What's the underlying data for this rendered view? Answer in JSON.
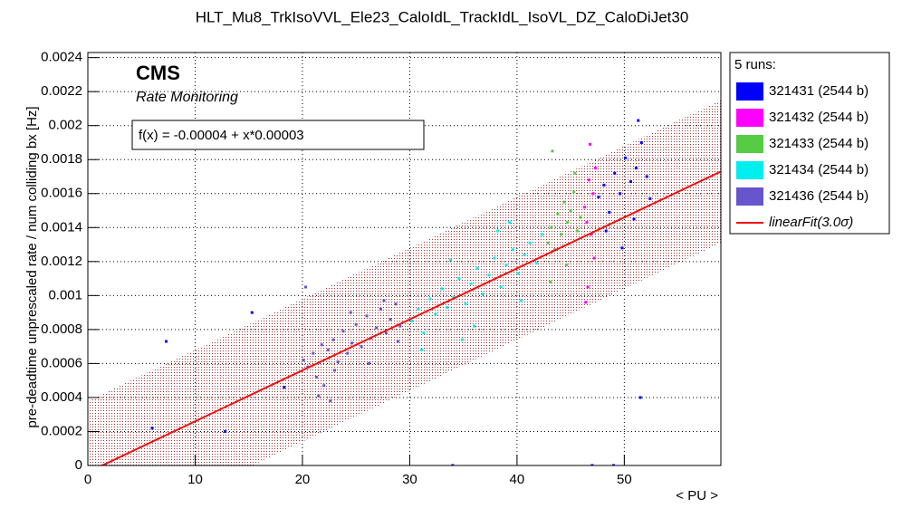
{
  "chart_data": {
    "type": "scatter",
    "title": "HLT_Mu8_TrkIsoVVL_Ele23_CaloIdL_TrackIdL_IsoVL_DZ_CaloDiJet30",
    "x_label": "< PU >",
    "y_label": "pre-deadtime unprescaled rate / num colliding bx [Hz]",
    "brand": "CMS",
    "subtitle": "Rate Monitoring",
    "legend_title": "5 runs:",
    "legend": "right",
    "grid": true,
    "xlim": [
      0,
      59
    ],
    "ylim": [
      0,
      0.00243
    ],
    "xticks": [
      0,
      10,
      20,
      30,
      40,
      50
    ],
    "yticks": [
      0,
      0.0002,
      0.0004,
      0.0006,
      0.0008,
      0.001,
      0.0012,
      0.0014,
      0.0016,
      0.0018,
      0.002,
      0.0022,
      0.0024
    ],
    "fit": {
      "name": "linearFit(3.0σ)",
      "formula": "f(x) = -0.00004 + x*0.00003",
      "intercept": -4e-05,
      "slope": 3e-05,
      "band": 0.00042,
      "color": "#ee1111",
      "band_color": "#993333"
    },
    "series": [
      {
        "name": "321431 (2544 b)",
        "color": "#0000ff",
        "x": [
          47.6,
          48.1,
          48.6,
          49.1,
          49.6,
          50.1,
          50.6,
          51.1,
          51.6,
          52.1,
          48.3,
          49.8,
          51.3,
          52.4,
          50.9,
          51.5,
          34,
          47,
          49,
          6,
          7.3,
          15.3,
          12.8,
          18.3
        ],
        "y": [
          0.00158,
          0.00165,
          0.00149,
          0.00172,
          0.0016,
          0.00181,
          0.00167,
          0.00175,
          0.0019,
          0.0017,
          0.00138,
          0.00128,
          0.00203,
          0.00157,
          0.00145,
          0.0004,
          0,
          0,
          0,
          0.00022,
          0.00073,
          0.0009,
          0.0002,
          0.00046
        ]
      },
      {
        "name": "321432 (2544 b)",
        "color": "#ff00ff",
        "x": [
          46.3,
          46.5,
          46.7,
          46.9,
          47.1,
          47.3,
          46.4,
          46.8,
          47.2,
          46.6
        ],
        "y": [
          0.00152,
          0.00143,
          0.00168,
          0.00136,
          0.0016,
          0.00175,
          0.00096,
          0.00189,
          0.00122,
          0.00105
        ]
      },
      {
        "name": "321433 (2544 b)",
        "color": "#55cc44",
        "x": [
          42.9,
          43.2,
          43.5,
          43.8,
          44.1,
          44.4,
          44.7,
          45,
          45.3,
          45.6,
          45.9,
          43.3,
          44.6,
          45.4,
          43.1
        ],
        "y": [
          0.00131,
          0.0014,
          0.00127,
          0.00148,
          0.00136,
          0.00155,
          0.00143,
          0.0015,
          0.00161,
          0.00138,
          0.00146,
          0.00185,
          0.00118,
          0.00172,
          0.00108
        ]
      },
      {
        "name": "321434 (2544 b)",
        "color": "#00eeee",
        "x": [
          30.2,
          30.8,
          31.3,
          31.9,
          32.4,
          33,
          33.5,
          34.1,
          34.6,
          35.2,
          35.7,
          36.3,
          36.8,
          37.4,
          37.9,
          38.5,
          39,
          39.6,
          40.1,
          40.7,
          41.2,
          41.8,
          42.3,
          31.1,
          33.8,
          36,
          38.2,
          40.4,
          34.9,
          39.3
        ],
        "y": [
          0.00085,
          0.00092,
          0.00078,
          0.00098,
          0.00089,
          0.00104,
          0.00093,
          0.00099,
          0.0011,
          0.00095,
          0.00107,
          0.00116,
          0.00101,
          0.00112,
          0.00122,
          0.00105,
          0.00118,
          0.00127,
          0.00113,
          0.00124,
          0.00131,
          0.00119,
          0.00136,
          0.00068,
          0.00121,
          0.00082,
          0.00138,
          0.00097,
          0.00074,
          0.00143
        ]
      },
      {
        "name": "321436 (2544 b)",
        "color": "#6655cc",
        "x": [
          20.1,
          20.5,
          21,
          21.3,
          21.8,
          22,
          22.4,
          22.9,
          23.3,
          23.8,
          24.2,
          24.6,
          25,
          25.5,
          26,
          26.4,
          26.9,
          27.3,
          27.8,
          28.2,
          28.7,
          29.1,
          21.5,
          23,
          24.5,
          26.2,
          27.6,
          28.9,
          20.3,
          22.6
        ],
        "y": [
          0.00062,
          0.00058,
          0.00066,
          0.00052,
          0.00071,
          0.00047,
          0.00068,
          0.00074,
          0.00061,
          0.00079,
          0.00066,
          0.00072,
          0.00083,
          0.0007,
          0.00088,
          0.00075,
          0.00081,
          0.00092,
          0.00078,
          0.00086,
          0.00095,
          0.00082,
          0.00041,
          0.00056,
          0.0009,
          0.0006,
          0.00097,
          0.00073,
          0.00105,
          0.00038
        ]
      }
    ]
  }
}
